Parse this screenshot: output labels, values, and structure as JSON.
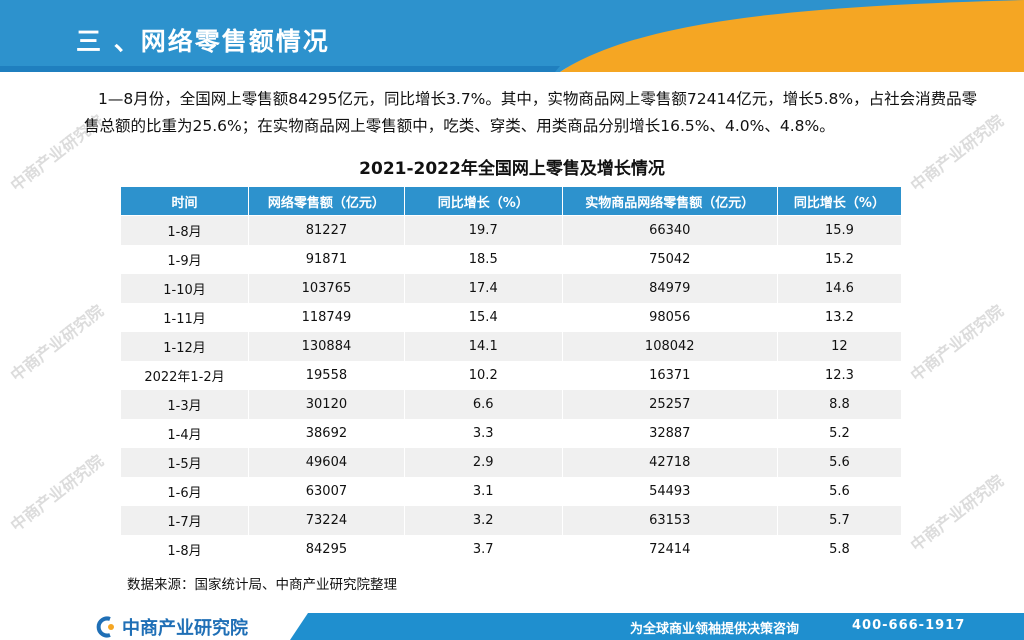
{
  "header": {
    "title": "三 、网络零售额情况"
  },
  "intro": {
    "text": "1—8月份，全国网上零售额84295亿元，同比增长3.7%。其中，实物商品网上零售额72414亿元，增长5.8%，占社会消费品零售总额的比重为25.6%；在实物商品网上零售额中，吃类、穿类、用类商品分别增长16.5%、4.0%、4.8%。"
  },
  "table": {
    "title": "2021-2022年全国网上零售及增长情况",
    "columns": [
      "时间",
      "网络零售额（亿元）",
      "同比增长（%）",
      "实物商品网络零售额（亿元）",
      "同比增长（%）"
    ],
    "rows": [
      [
        "1-8月",
        "81227",
        "19.7",
        "66340",
        "15.9"
      ],
      [
        "1-9月",
        "91871",
        "18.5",
        "75042",
        "15.2"
      ],
      [
        "1-10月",
        "103765",
        "17.4",
        "84979",
        "14.6"
      ],
      [
        "1-11月",
        "118749",
        "15.4",
        "98056",
        "13.2"
      ],
      [
        "1-12月",
        "130884",
        "14.1",
        "108042",
        "12"
      ],
      [
        "2022年1-2月",
        "19558",
        "10.2",
        "16371",
        "12.3"
      ],
      [
        "1-3月",
        "30120",
        "6.6",
        "25257",
        "8.8"
      ],
      [
        "1-4月",
        "38692",
        "3.3",
        "32887",
        "5.2"
      ],
      [
        "1-5月",
        "49604",
        "2.9",
        "42718",
        "5.6"
      ],
      [
        "1-6月",
        "63007",
        "3.1",
        "54493",
        "5.6"
      ],
      [
        "1-7月",
        "73224",
        "3.2",
        "63153",
        "5.7"
      ],
      [
        "1-8月",
        "84295",
        "3.7",
        "72414",
        "5.8"
      ]
    ]
  },
  "source": "数据来源：国家统计局、中商产业研究院整理",
  "footer": {
    "logo_text": "中商产业研究院",
    "slogan": "为全球商业领袖提供决策咨询",
    "phone": "400-666-1917"
  },
  "watermark": "中商产业研究院",
  "colors": {
    "header_blue": "#2d92cd",
    "accent_orange": "#f5a623",
    "table_header": "#2d92cd"
  }
}
